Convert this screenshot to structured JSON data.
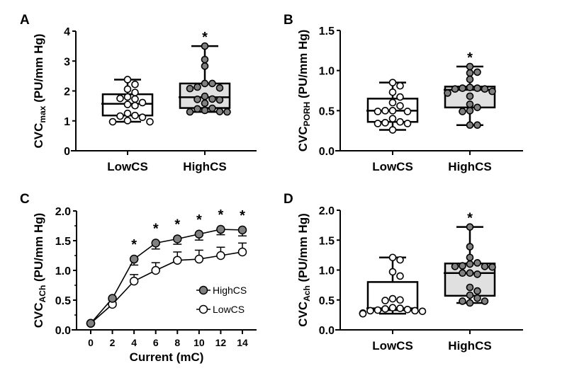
{
  "chart_data": [
    {
      "panel": "A",
      "type": "box",
      "ylabel_main": "CVC",
      "ylabel_sub": "max",
      "ylabel_rest": " (PU/mm Hg)",
      "ylim": [
        0,
        4
      ],
      "yticks": [
        "0",
        "1",
        "2",
        "3",
        "4"
      ],
      "ytick_values": [
        0,
        1,
        2,
        3,
        4
      ],
      "categories": [
        "LowCS",
        "HighCS"
      ],
      "groups": [
        {
          "name": "LowCS",
          "fill": "#ffffff",
          "box_fill": "#ffffff",
          "min": 0.97,
          "q1": 1.18,
          "median": 1.57,
          "q3": 1.89,
          "max": 2.38,
          "points": [
            2.38,
            2.22,
            2.06,
            1.95,
            1.8,
            1.75,
            1.73,
            1.61,
            1.55,
            1.51,
            1.25,
            1.18,
            1.16,
            1.12,
            1.01,
            0.97,
            0.97
          ],
          "significant": false
        },
        {
          "name": "HighCS",
          "fill": "#808080",
          "box_fill": "#e0e0e0",
          "min": 1.3,
          "q1": 1.43,
          "median": 1.79,
          "q3": 2.25,
          "max": 3.5,
          "points": [
            3.5,
            3.05,
            2.83,
            2.25,
            2.25,
            2.13,
            2.1,
            2.08,
            1.82,
            1.73,
            1.72,
            1.7,
            1.59,
            1.42,
            1.4,
            1.35,
            1.31,
            1.3,
            1.3
          ],
          "significant": true
        }
      ],
      "annotation": "*"
    },
    {
      "panel": "B",
      "type": "box",
      "ylabel_main": "CVC",
      "ylabel_sub": "PORH",
      "ylabel_rest": " (PU/mm Hg)",
      "ylim": [
        0,
        1.5
      ],
      "yticks": [
        "0.0",
        "0.5",
        "1.0",
        "1.5"
      ],
      "ytick_values": [
        0,
        0.5,
        1.0,
        1.5
      ],
      "categories": [
        "LowCS",
        "HighCS"
      ],
      "groups": [
        {
          "name": "LowCS",
          "fill": "#ffffff",
          "box_fill": "#ffffff",
          "min": 0.26,
          "q1": 0.36,
          "median": 0.5,
          "q3": 0.65,
          "max": 0.85,
          "points": [
            0.85,
            0.81,
            0.73,
            0.67,
            0.6,
            0.56,
            0.5,
            0.5,
            0.49,
            0.49,
            0.4,
            0.36,
            0.35,
            0.34,
            0.34,
            0.26
          ],
          "significant": false
        },
        {
          "name": "HighCS",
          "fill": "#808080",
          "box_fill": "#e0e0e0",
          "min": 0.32,
          "q1": 0.54,
          "median": 0.76,
          "q3": 0.8,
          "max": 1.05,
          "points": [
            1.05,
            0.98,
            0.97,
            0.89,
            0.79,
            0.78,
            0.78,
            0.77,
            0.77,
            0.74,
            0.72,
            0.68,
            0.58,
            0.54,
            0.5,
            0.49,
            0.32,
            0.32
          ],
          "significant": true
        }
      ],
      "annotation": "*"
    },
    {
      "panel": "C",
      "type": "line",
      "ylabel_main": "CVC",
      "ylabel_sub": "ACh",
      "ylabel_rest": " (PU/mm Hg)",
      "xlabel": "Current (mC)",
      "ylim": [
        0,
        2.0
      ],
      "yticks": [
        "0.0",
        "0.5",
        "1.0",
        "1.5",
        "2.0"
      ],
      "ytick_values": [
        0,
        0.5,
        1.0,
        1.5,
        2.0
      ],
      "x": [
        0,
        2,
        4,
        6,
        8,
        10,
        12,
        14
      ],
      "xticks": [
        "0",
        "2",
        "4",
        "6",
        "8",
        "10",
        "12",
        "14"
      ],
      "series": [
        {
          "name": "HighCS",
          "fill": "#808080",
          "values": [
            0.11,
            0.53,
            1.19,
            1.46,
            1.53,
            1.61,
            1.69,
            1.68
          ],
          "sem": [
            0,
            0.03,
            0.1,
            0.1,
            0.09,
            0.1,
            0.09,
            0.1
          ],
          "err_dir": "down"
        },
        {
          "name": "LowCS",
          "fill": "#ffffff",
          "values": [
            0.11,
            0.43,
            0.82,
            1.0,
            1.17,
            1.19,
            1.25,
            1.31
          ],
          "sem": [
            0,
            0.03,
            0.11,
            0.13,
            0.14,
            0.15,
            0.14,
            0.15
          ],
          "err_dir": "up"
        }
      ],
      "significance": [
        false,
        false,
        true,
        true,
        true,
        true,
        true,
        true
      ],
      "annotation": "*",
      "legend": [
        "HighCS",
        "LowCS"
      ],
      "legend_position": "center-right"
    },
    {
      "panel": "D",
      "type": "box",
      "ylabel_main": "CVC",
      "ylabel_sub": "Ach",
      "ylabel_rest": " (PU/mm Hg)",
      "ylim": [
        0,
        2.0
      ],
      "yticks": [
        "0.0",
        "0.5",
        "1.0",
        "1.5",
        "2.0"
      ],
      "ytick_values": [
        0,
        0.5,
        1.0,
        1.5,
        2.0
      ],
      "categories": [
        "LowCS",
        "HighCS"
      ],
      "groups": [
        {
          "name": "LowCS",
          "fill": "#ffffff",
          "box_fill": "#ffffff",
          "min": 0.27,
          "q1": 0.33,
          "median": 0.36,
          "q3": 0.8,
          "max": 1.21,
          "points": [
            1.21,
            1.17,
            0.97,
            0.9,
            0.52,
            0.5,
            0.49,
            0.37,
            0.36,
            0.35,
            0.34,
            0.33,
            0.32,
            0.32,
            0.31,
            0.28,
            0.27,
            0.27
          ],
          "significant": false
        },
        {
          "name": "HighCS",
          "fill": "#808080",
          "box_fill": "#e0e0e0",
          "min": 0.45,
          "q1": 0.57,
          "median": 0.95,
          "q3": 1.11,
          "max": 1.72,
          "points": [
            1.72,
            1.39,
            1.21,
            1.12,
            1.1,
            1.07,
            1.06,
            1.06,
            1.05,
            0.95,
            0.93,
            0.95,
            0.71,
            0.65,
            0.58,
            0.53,
            0.48,
            0.48,
            0.45
          ],
          "significant": true
        }
      ],
      "annotation": "*"
    }
  ]
}
